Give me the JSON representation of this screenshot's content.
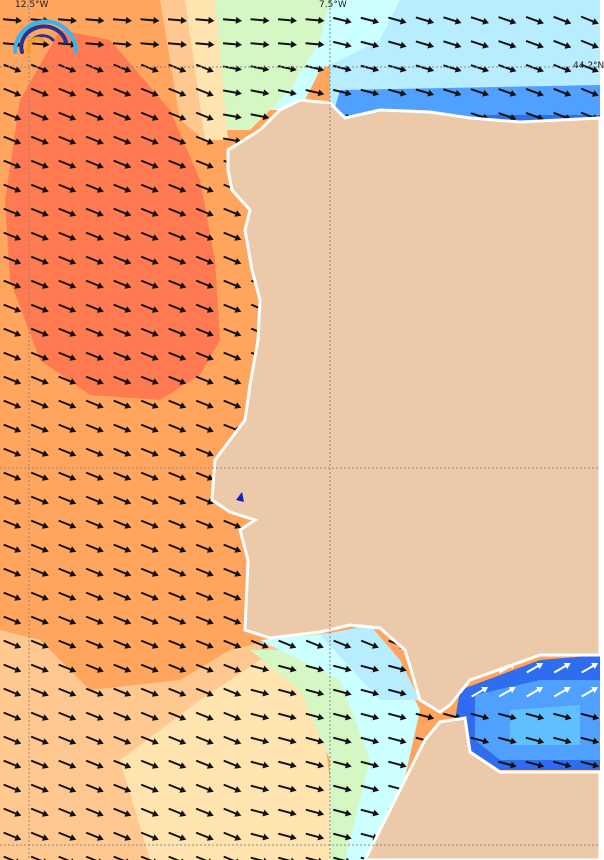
{
  "map": {
    "grid_labels": {
      "lon_west": "12.5°W",
      "lon_east": "7.5°W",
      "lat_top": "44.2°N"
    },
    "colors": {
      "land": "#ecc9a8",
      "coast_fringe": "#ffffff",
      "level_max": "#ff7a50",
      "level_high": "#ffa55e",
      "level_mid": "#ffc890",
      "level_low": "#ffe4b0",
      "level_lower": "#d4f7c4",
      "level_calm": "#ccffff",
      "level_calm2": "#b8ecff",
      "level_blue": "#60c0ff",
      "level_blue2": "#50a0ff",
      "level_deep": "#2e6cf0",
      "arrow": "#111111",
      "arrow_light": "#ffffff",
      "logo_outer": "#3ab4ee",
      "logo_mid": "#28358a",
      "logo_inner": "#f0a020"
    },
    "arrow_direction": "east-southeast",
    "logo": "wave-arcs-logo"
  }
}
